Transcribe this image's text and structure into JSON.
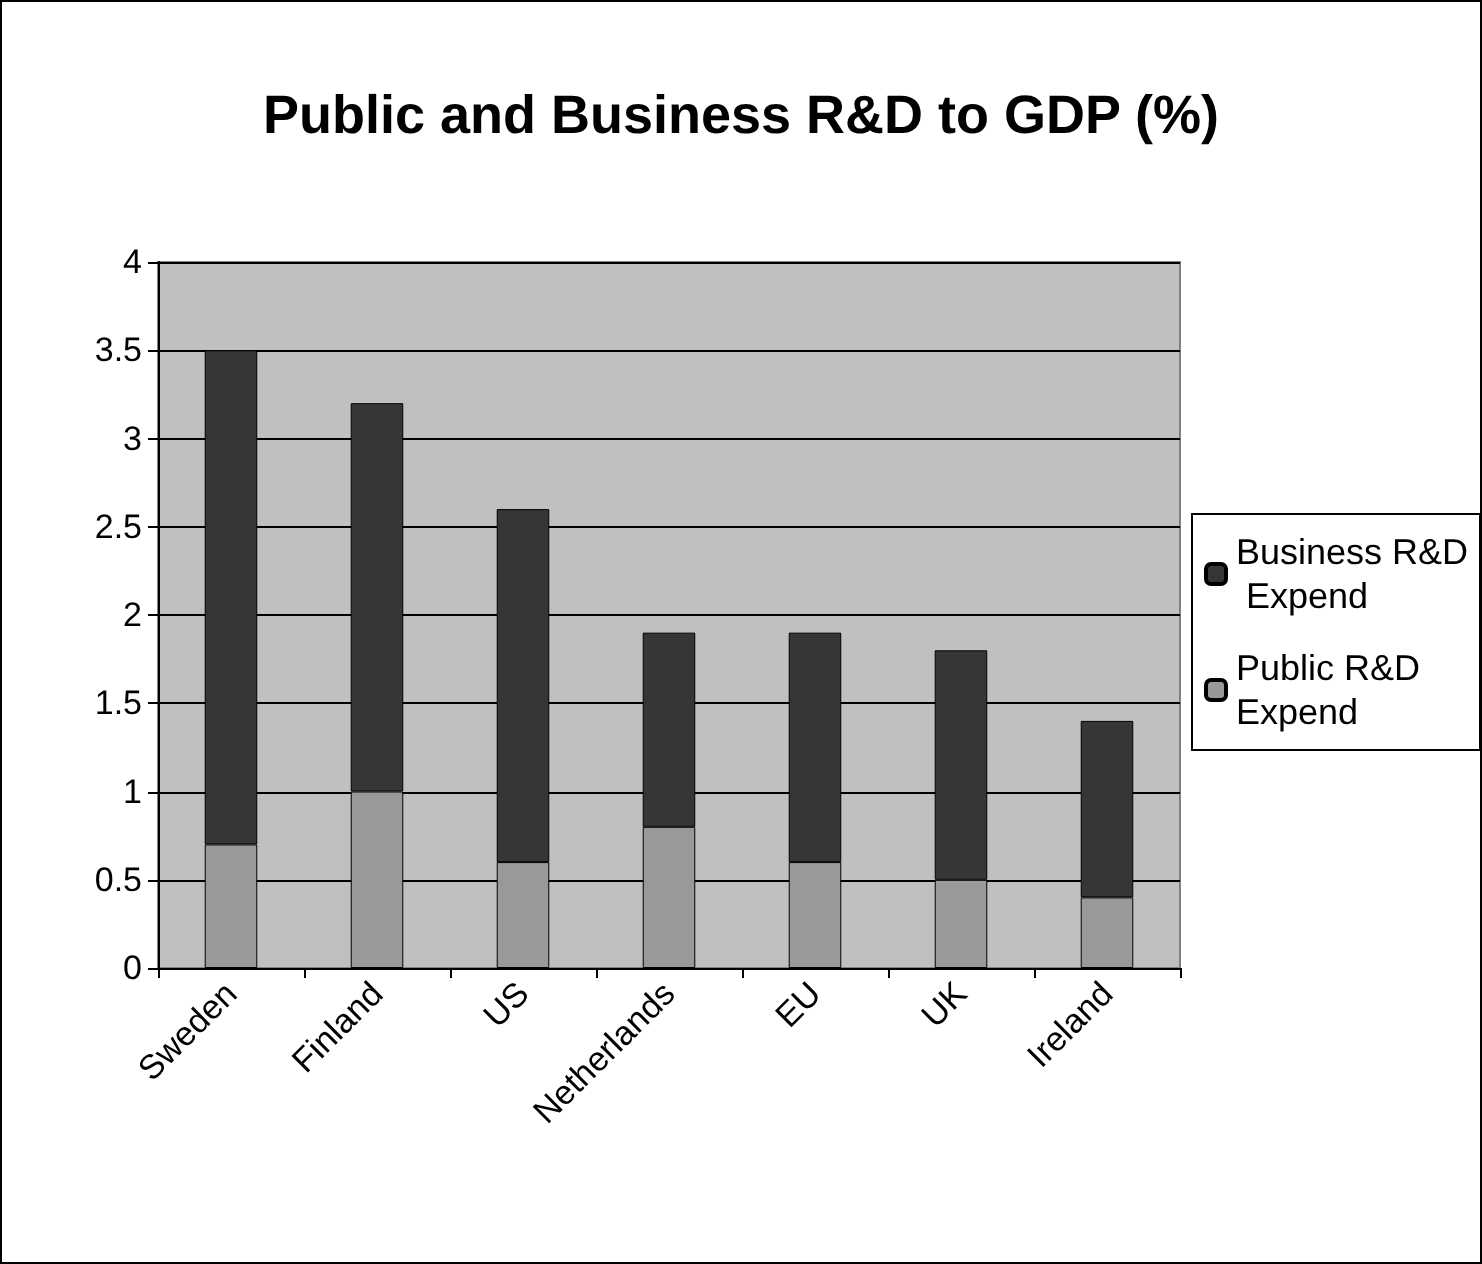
{
  "chart_data": {
    "type": "bar",
    "title": "Public and Business R&D to GDP (%)",
    "stacked": true,
    "categories": [
      "Sweden",
      "Finland",
      "US",
      "Netherlands",
      "EU",
      "UK",
      "Ireland"
    ],
    "series": [
      {
        "name": "Public R&D Expend",
        "color": "#999999",
        "values": [
          0.7,
          1.0,
          0.6,
          0.8,
          0.6,
          0.5,
          0.4
        ]
      },
      {
        "name": "Business R&D Expend",
        "color": "#363636",
        "values": [
          2.8,
          2.2,
          2.0,
          1.1,
          1.3,
          1.3,
          1.0
        ]
      }
    ],
    "ylim": [
      0,
      4
    ],
    "yticks": [
      0,
      0.5,
      1,
      1.5,
      2,
      2.5,
      3,
      3.5,
      4
    ],
    "grid": "y",
    "legend": "right"
  }
}
